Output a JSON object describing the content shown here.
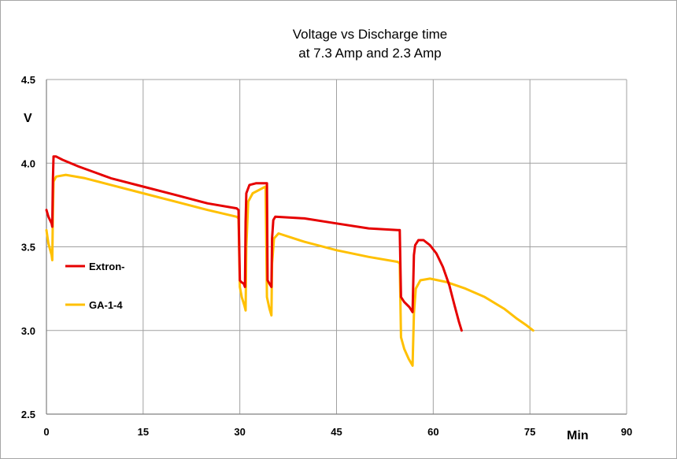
{
  "chart_data": {
    "type": "line",
    "title": "Voltage vs Discharge time",
    "subtitle": "at 7.3 Amp and 2.3 Amp",
    "xlabel": "Min",
    "ylabel": "V",
    "xlim": [
      0,
      90
    ],
    "ylim": [
      2.5,
      4.5
    ],
    "x_ticks": [
      "0",
      "15",
      "30",
      "45",
      "60",
      "75",
      "90"
    ],
    "y_ticks": [
      "2.5",
      "3.0",
      "3.5",
      "4.0",
      "4.5"
    ],
    "grid": true,
    "legend_position": "left",
    "series": [
      {
        "name": "Extron-",
        "color": "#e60000",
        "points": [
          [
            0,
            3.72
          ],
          [
            0.3,
            3.68
          ],
          [
            0.8,
            3.64
          ],
          [
            0.9,
            3.62
          ],
          [
            1.0,
            3.9
          ],
          [
            1.1,
            4.04
          ],
          [
            1.5,
            4.04
          ],
          [
            2.5,
            4.02
          ],
          [
            5,
            3.98
          ],
          [
            10,
            3.91
          ],
          [
            15,
            3.86
          ],
          [
            20,
            3.81
          ],
          [
            25,
            3.76
          ],
          [
            29.5,
            3.73
          ],
          [
            29.8,
            3.72
          ],
          [
            30.0,
            3.3
          ],
          [
            30.2,
            3.29
          ],
          [
            30.6,
            3.28
          ],
          [
            30.8,
            3.26
          ],
          [
            30.9,
            3.65
          ],
          [
            31.0,
            3.82
          ],
          [
            31.5,
            3.87
          ],
          [
            32.5,
            3.88
          ],
          [
            34.0,
            3.88
          ],
          [
            34.2,
            3.88
          ],
          [
            34.3,
            3.3
          ],
          [
            34.6,
            3.28
          ],
          [
            34.9,
            3.26
          ],
          [
            35.0,
            3.55
          ],
          [
            35.2,
            3.66
          ],
          [
            35.5,
            3.68
          ],
          [
            40,
            3.67
          ],
          [
            45,
            3.64
          ],
          [
            50,
            3.61
          ],
          [
            54.5,
            3.6
          ],
          [
            54.8,
            3.6
          ],
          [
            55.0,
            3.2
          ],
          [
            55.5,
            3.17
          ],
          [
            56.3,
            3.14
          ],
          [
            56.8,
            3.11
          ],
          [
            57.0,
            3.45
          ],
          [
            57.2,
            3.51
          ],
          [
            57.7,
            3.54
          ],
          [
            58.5,
            3.54
          ],
          [
            59.5,
            3.51
          ],
          [
            60.5,
            3.46
          ],
          [
            61.5,
            3.38
          ],
          [
            62.5,
            3.27
          ],
          [
            63.3,
            3.15
          ],
          [
            64.0,
            3.05
          ],
          [
            64.4,
            3.0
          ]
        ]
      },
      {
        "name": "GA-1-4",
        "color": "#ffc000",
        "points": [
          [
            0,
            3.6
          ],
          [
            0.3,
            3.52
          ],
          [
            0.8,
            3.45
          ],
          [
            0.9,
            3.42
          ],
          [
            1.0,
            3.7
          ],
          [
            1.1,
            3.89
          ],
          [
            1.5,
            3.92
          ],
          [
            3,
            3.93
          ],
          [
            6,
            3.91
          ],
          [
            10,
            3.87
          ],
          [
            15,
            3.82
          ],
          [
            20,
            3.77
          ],
          [
            25,
            3.72
          ],
          [
            29.5,
            3.68
          ],
          [
            29.8,
            3.67
          ],
          [
            30.0,
            3.26
          ],
          [
            30.3,
            3.2
          ],
          [
            30.7,
            3.15
          ],
          [
            30.9,
            3.12
          ],
          [
            31.0,
            3.5
          ],
          [
            31.3,
            3.77
          ],
          [
            32,
            3.82
          ],
          [
            33.5,
            3.85
          ],
          [
            34.0,
            3.86
          ],
          [
            34.2,
            3.2
          ],
          [
            34.6,
            3.13
          ],
          [
            34.9,
            3.09
          ],
          [
            35.0,
            3.4
          ],
          [
            35.3,
            3.55
          ],
          [
            36,
            3.58
          ],
          [
            40,
            3.53
          ],
          [
            45,
            3.48
          ],
          [
            50,
            3.44
          ],
          [
            54.5,
            3.41
          ],
          [
            54.8,
            3.4
          ],
          [
            55.0,
            2.96
          ],
          [
            55.5,
            2.89
          ],
          [
            56.2,
            2.83
          ],
          [
            56.8,
            2.79
          ],
          [
            57.0,
            3.1
          ],
          [
            57.3,
            3.25
          ],
          [
            58.0,
            3.3
          ],
          [
            59.5,
            3.31
          ],
          [
            62,
            3.29
          ],
          [
            65,
            3.25
          ],
          [
            68,
            3.2
          ],
          [
            71,
            3.13
          ],
          [
            73,
            3.07
          ],
          [
            74.5,
            3.03
          ],
          [
            75.5,
            3.0
          ]
        ]
      }
    ]
  }
}
